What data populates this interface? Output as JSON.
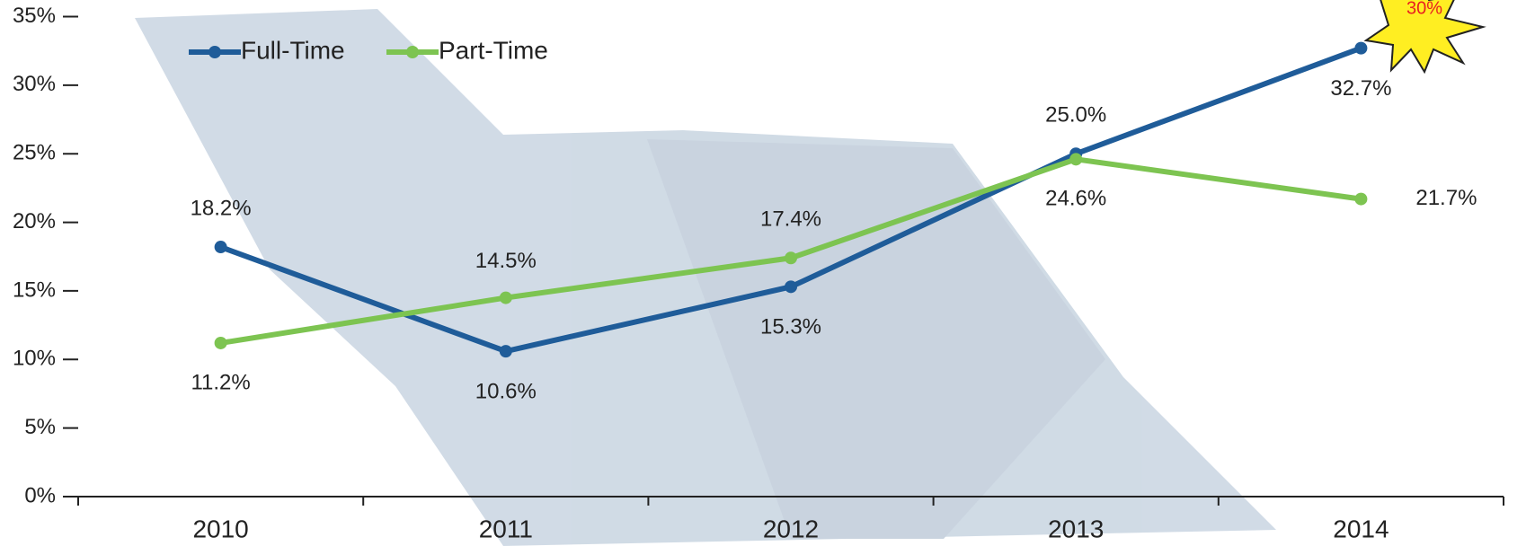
{
  "chart_data": {
    "type": "line",
    "categories": [
      "2010",
      "2011",
      "2012",
      "2013",
      "2014"
    ],
    "series": [
      {
        "name": "Full-Time",
        "color": "#1f5c99",
        "values": [
          18.2,
          10.6,
          15.3,
          25.0,
          32.7
        ],
        "value_labels": [
          "18.2%",
          "10.6%",
          "15.3%",
          "25.0%",
          "32.7%"
        ]
      },
      {
        "name": "Part-Time",
        "color": "#7dc451",
        "values": [
          11.2,
          14.5,
          17.4,
          24.6,
          21.7
        ],
        "value_labels": [
          "11.2%",
          "14.5%",
          "17.4%",
          "24.6%",
          "21.7%"
        ]
      }
    ],
    "ylim": [
      0,
      35
    ],
    "yticks": [
      {
        "value": 0,
        "label": "0%"
      },
      {
        "value": 5,
        "label": "5%"
      },
      {
        "value": 10,
        "label": "10%"
      },
      {
        "value": 15,
        "label": "15%"
      },
      {
        "value": 20,
        "label": "20%"
      },
      {
        "value": 25,
        "label": "25%"
      },
      {
        "value": 30,
        "label": "30%"
      },
      {
        "value": 35,
        "label": "35%"
      }
    ],
    "annotation": "30%",
    "legend": "top-left"
  }
}
